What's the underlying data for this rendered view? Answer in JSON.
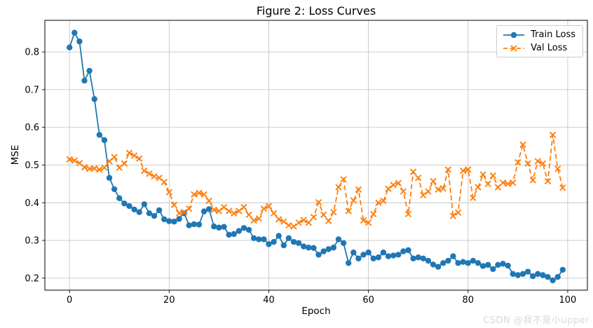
{
  "figure": {
    "watermark": "CSDN @我不是小upper"
  },
  "chart_data": {
    "type": "line",
    "title": "Figure 2: Loss Curves",
    "xlabel": "Epoch",
    "ylabel": "MSE",
    "grid": true,
    "legend_position": "upper right",
    "xlim": [
      -4.95,
      103.95
    ],
    "ylim": [
      0.168,
      0.884
    ],
    "x_ticks": [
      "0",
      "20",
      "40",
      "60",
      "80",
      "100"
    ],
    "y_ticks": [
      "0.2",
      "0.3",
      "0.4",
      "0.5",
      "0.6",
      "0.7",
      "0.8"
    ],
    "x": [
      0,
      1,
      2,
      3,
      4,
      5,
      6,
      7,
      8,
      9,
      10,
      11,
      12,
      13,
      14,
      15,
      16,
      17,
      18,
      19,
      20,
      21,
      22,
      23,
      24,
      25,
      26,
      27,
      28,
      29,
      30,
      31,
      32,
      33,
      34,
      35,
      36,
      37,
      38,
      39,
      40,
      41,
      42,
      43,
      44,
      45,
      46,
      47,
      48,
      49,
      50,
      51,
      52,
      53,
      54,
      55,
      56,
      57,
      58,
      59,
      60,
      61,
      62,
      63,
      64,
      65,
      66,
      67,
      68,
      69,
      70,
      71,
      72,
      73,
      74,
      75,
      76,
      77,
      78,
      79,
      80,
      81,
      82,
      83,
      84,
      85,
      86,
      87,
      88,
      89,
      90,
      91,
      92,
      93,
      94,
      95,
      96,
      97,
      98,
      99
    ],
    "series": [
      {
        "name": "Train Loss",
        "color": "#1f77b4",
        "line_style": "solid",
        "marker": "circle",
        "values": [
          0.812,
          0.851,
          0.828,
          0.724,
          0.75,
          0.675,
          0.58,
          0.566,
          0.466,
          0.436,
          0.412,
          0.398,
          0.391,
          0.382,
          0.375,
          0.396,
          0.372,
          0.365,
          0.38,
          0.356,
          0.351,
          0.35,
          0.357,
          0.372,
          0.34,
          0.343,
          0.342,
          0.377,
          0.383,
          0.337,
          0.334,
          0.336,
          0.315,
          0.317,
          0.325,
          0.333,
          0.328,
          0.306,
          0.303,
          0.303,
          0.29,
          0.296,
          0.312,
          0.287,
          0.306,
          0.296,
          0.293,
          0.284,
          0.281,
          0.28,
          0.262,
          0.271,
          0.277,
          0.281,
          0.303,
          0.293,
          0.24,
          0.268,
          0.252,
          0.262,
          0.268,
          0.252,
          0.255,
          0.268,
          0.258,
          0.26,
          0.262,
          0.271,
          0.274,
          0.252,
          0.255,
          0.252,
          0.246,
          0.236,
          0.23,
          0.24,
          0.246,
          0.258,
          0.24,
          0.243,
          0.24,
          0.246,
          0.24,
          0.232,
          0.235,
          0.224,
          0.235,
          0.238,
          0.233,
          0.211,
          0.208,
          0.211,
          0.217,
          0.205,
          0.211,
          0.208,
          0.203,
          0.194,
          0.203,
          0.222
        ]
      },
      {
        "name": "Val Loss",
        "color": "#ff7f0e",
        "line_style": "dashed",
        "marker": "x",
        "values": [
          0.515,
          0.512,
          0.505,
          0.494,
          0.49,
          0.491,
          0.488,
          0.493,
          0.51,
          0.521,
          0.493,
          0.504,
          0.532,
          0.525,
          0.517,
          0.485,
          0.477,
          0.47,
          0.466,
          0.455,
          0.428,
          0.394,
          0.372,
          0.375,
          0.384,
          0.422,
          0.426,
          0.422,
          0.405,
          0.381,
          0.378,
          0.388,
          0.378,
          0.372,
          0.378,
          0.388,
          0.368,
          0.353,
          0.358,
          0.384,
          0.391,
          0.372,
          0.356,
          0.35,
          0.34,
          0.337,
          0.347,
          0.354,
          0.347,
          0.362,
          0.401,
          0.368,
          0.352,
          0.375,
          0.441,
          0.462,
          0.378,
          0.406,
          0.435,
          0.353,
          0.347,
          0.37,
          0.4,
          0.405,
          0.437,
          0.447,
          0.452,
          0.43,
          0.37,
          0.482,
          0.466,
          0.42,
          0.43,
          0.457,
          0.435,
          0.438,
          0.488,
          0.365,
          0.374,
          0.485,
          0.488,
          0.413,
          0.441,
          0.475,
          0.45,
          0.472,
          0.441,
          0.453,
          0.45,
          0.453,
          0.507,
          0.554,
          0.504,
          0.46,
          0.51,
          0.504,
          0.457,
          0.58,
          0.49,
          0.44
        ]
      }
    ]
  }
}
